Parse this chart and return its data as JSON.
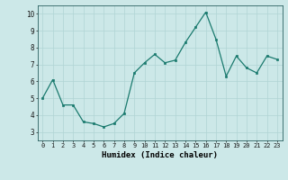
{
  "x": [
    0,
    1,
    2,
    3,
    4,
    5,
    6,
    7,
    8,
    9,
    10,
    11,
    12,
    13,
    14,
    15,
    16,
    17,
    18,
    19,
    20,
    21,
    22,
    23
  ],
  "y": [
    5.0,
    6.1,
    4.6,
    4.6,
    3.6,
    3.5,
    3.3,
    3.5,
    4.1,
    6.5,
    7.1,
    7.6,
    7.1,
    7.25,
    8.3,
    9.2,
    10.1,
    8.5,
    6.3,
    7.5,
    6.8,
    6.5,
    7.5,
    7.3
  ],
  "xlabel": "Humidex (Indice chaleur)",
  "ylim": [
    2.5,
    10.5
  ],
  "xlim": [
    -0.5,
    23.5
  ],
  "yticks": [
    3,
    4,
    5,
    6,
    7,
    8,
    9,
    10
  ],
  "xticks": [
    0,
    1,
    2,
    3,
    4,
    5,
    6,
    7,
    8,
    9,
    10,
    11,
    12,
    13,
    14,
    15,
    16,
    17,
    18,
    19,
    20,
    21,
    22,
    23
  ],
  "xtick_labels": [
    "0",
    "1",
    "2",
    "3",
    "4",
    "5",
    "6",
    "7",
    "8",
    "9",
    "10",
    "11",
    "12",
    "13",
    "14",
    "15",
    "16",
    "17",
    "18",
    "19",
    "20",
    "21",
    "22",
    "23"
  ],
  "line_color": "#1a7a6e",
  "marker_color": "#1a7a6e",
  "bg_color": "#cce8e8",
  "grid_color": "#b0d4d4",
  "figure_bg": "#cce8e8"
}
